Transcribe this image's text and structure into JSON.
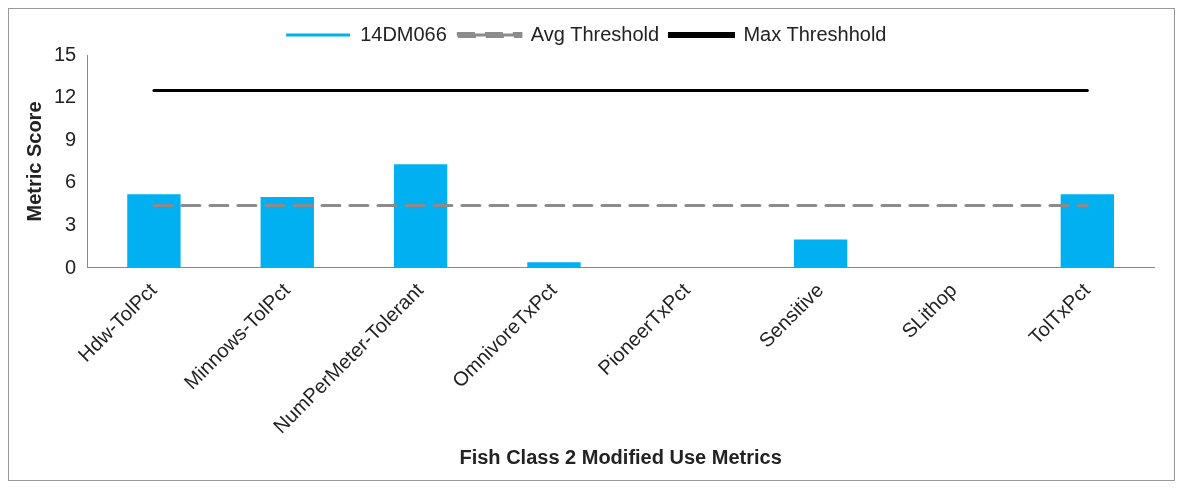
{
  "chart_data": {
    "type": "bar",
    "xlabel": "Fish Class 2 Modified Use Metrics",
    "ylabel": "Metric Score",
    "categories": [
      "Hdw-TolPct",
      "Minnows-TolPct",
      "NumPerMeter-Tolerant",
      "OmnivoreTxPct",
      "PioneerTxPct",
      "Sensitive",
      "SLithop",
      "TolTxPct"
    ],
    "series": [
      {
        "name": "14DM066",
        "color": "#00b0f0",
        "values": [
          5.2,
          5.0,
          7.3,
          0.4,
          0,
          2.0,
          0,
          5.2
        ]
      },
      {
        "name": "Avg Threshold",
        "type": "line",
        "color": "#8c8c8c",
        "line_style": "dashed",
        "values": [
          4.4,
          4.4,
          4.4,
          4.4,
          4.4,
          4.4,
          4.4,
          4.4
        ]
      },
      {
        "name": "Max Threshhold",
        "type": "line",
        "color": "#000000",
        "line_style": "solid",
        "values": [
          12.5,
          12.5,
          12.5,
          12.5,
          12.5,
          12.5,
          12.5,
          12.5
        ]
      }
    ],
    "ylim": [
      0,
      15
    ],
    "yticks": [
      0,
      3,
      6,
      9,
      12,
      15
    ],
    "grid": false,
    "legend": "top",
    "marker": "none"
  }
}
